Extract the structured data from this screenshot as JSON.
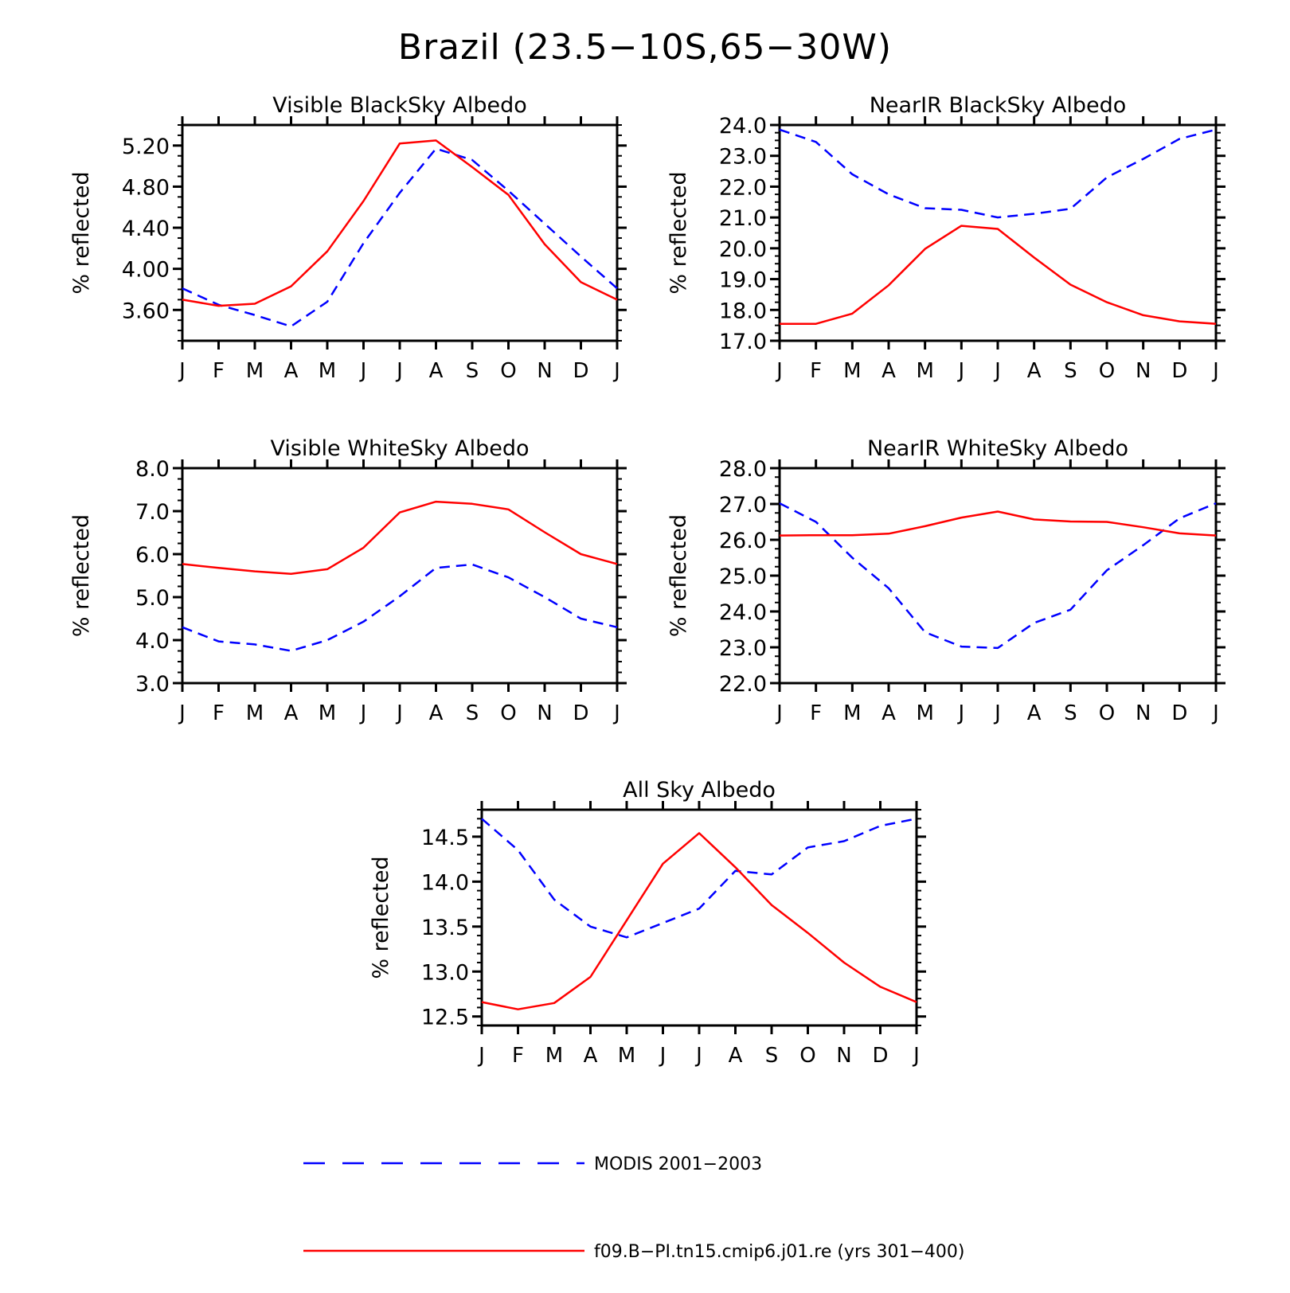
{
  "title": "Brazil (23.5−10S,65−30W)",
  "colors": {
    "modis": "#0000ff",
    "model": "#ff0000",
    "axis": "#000000"
  },
  "months": [
    "J",
    "F",
    "M",
    "A",
    "M",
    "J",
    "J",
    "A",
    "S",
    "O",
    "N",
    "D",
    "J"
  ],
  "ylabel": "% reflected",
  "legend": {
    "modis": "MODIS 2001−2003",
    "model": "f09.B−PI.tn15.cmip6.j01.re (yrs 301−400)"
  },
  "chart_data": [
    {
      "type": "line",
      "title": "Visible BlackSky Albedo",
      "ylabel": "% reflected",
      "ylim": [
        3.3,
        5.4
      ],
      "yticks": [
        "3.60",
        "4.00",
        "4.40",
        "4.80",
        "5.20"
      ],
      "ytick_values": [
        3.6,
        4.0,
        4.4,
        4.8,
        5.2
      ],
      "yminor": 0.1,
      "series": [
        {
          "name": "MODIS 2001−2003",
          "style": "dashed",
          "values": [
            3.81,
            3.65,
            3.55,
            3.44,
            3.68,
            4.25,
            4.74,
            5.17,
            5.06,
            4.76,
            4.44,
            4.12,
            3.81
          ]
        },
        {
          "name": "f09.B−PI.tn15.cmip6.j01.re (yrs 301−400)",
          "style": "solid",
          "values": [
            3.7,
            3.64,
            3.66,
            3.83,
            4.17,
            4.66,
            5.22,
            5.25,
            4.99,
            4.72,
            4.24,
            3.87,
            3.7
          ]
        }
      ]
    },
    {
      "type": "line",
      "title": "NearIR BlackSky Albedo",
      "ylabel": "% reflected",
      "ylim": [
        17.0,
        24.0
      ],
      "yticks": [
        "17.0",
        "18.0",
        "19.0",
        "20.0",
        "21.0",
        "22.0",
        "23.0",
        "24.0"
      ],
      "ytick_values": [
        17,
        18,
        19,
        20,
        21,
        22,
        23,
        24
      ],
      "yminor": 0.25,
      "series": [
        {
          "name": "MODIS 2001−2003",
          "style": "dashed",
          "values": [
            23.85,
            23.45,
            22.4,
            21.75,
            21.3,
            21.25,
            21.0,
            21.12,
            21.28,
            22.3,
            22.9,
            23.55,
            23.85
          ]
        },
        {
          "name": "f09.B−PI.tn15.cmip6.j01.re (yrs 301−400)",
          "style": "solid",
          "values": [
            17.55,
            17.55,
            17.88,
            18.8,
            19.98,
            20.73,
            20.63,
            19.7,
            18.82,
            18.25,
            17.83,
            17.63,
            17.55
          ]
        }
      ]
    },
    {
      "type": "line",
      "title": "Visible WhiteSky Albedo",
      "ylabel": "% reflected",
      "ylim": [
        3.0,
        8.0
      ],
      "yticks": [
        "3.0",
        "4.0",
        "5.0",
        "6.0",
        "7.0",
        "8.0"
      ],
      "ytick_values": [
        3,
        4,
        5,
        6,
        7,
        8
      ],
      "yminor": 0.25,
      "series": [
        {
          "name": "MODIS 2001−2003",
          "style": "dashed",
          "values": [
            4.3,
            3.97,
            3.9,
            3.75,
            4.0,
            4.43,
            5.02,
            5.68,
            5.76,
            5.46,
            5.0,
            4.5,
            4.3
          ]
        },
        {
          "name": "f09.B−PI.tn15.cmip6.j01.re (yrs 301−400)",
          "style": "solid",
          "values": [
            5.77,
            5.68,
            5.6,
            5.54,
            5.65,
            6.15,
            6.97,
            7.22,
            7.17,
            7.04,
            6.51,
            6.0,
            5.77
          ]
        }
      ]
    },
    {
      "type": "line",
      "title": "NearIR WhiteSky Albedo",
      "ylabel": "% reflected",
      "ylim": [
        22.0,
        28.0
      ],
      "yticks": [
        "22.0",
        "23.0",
        "24.0",
        "25.0",
        "26.0",
        "27.0",
        "28.0"
      ],
      "ytick_values": [
        22,
        23,
        24,
        25,
        26,
        27,
        28
      ],
      "yminor": 0.25,
      "series": [
        {
          "name": "MODIS 2001−2003",
          "style": "dashed",
          "values": [
            27.02,
            26.5,
            25.5,
            24.65,
            23.42,
            23.02,
            22.98,
            23.68,
            24.05,
            25.15,
            25.85,
            26.6,
            27.02
          ]
        },
        {
          "name": "f09.B−PI.tn15.cmip6.j01.re (yrs 301−400)",
          "style": "solid",
          "values": [
            26.12,
            26.13,
            26.13,
            26.17,
            26.38,
            26.62,
            26.79,
            26.57,
            26.51,
            26.5,
            26.35,
            26.18,
            26.12
          ]
        }
      ]
    },
    {
      "type": "line",
      "title": "All Sky Albedo",
      "ylabel": "% reflected",
      "ylim": [
        12.4,
        14.8
      ],
      "yticks": [
        "12.5",
        "13.0",
        "13.5",
        "14.0",
        "14.5"
      ],
      "ytick_values": [
        12.5,
        13.0,
        13.5,
        14.0,
        14.5
      ],
      "yminor": 0.1,
      "series": [
        {
          "name": "MODIS 2001−2003",
          "style": "dashed",
          "values": [
            14.7,
            14.35,
            13.8,
            13.5,
            13.38,
            13.54,
            13.7,
            14.12,
            14.08,
            14.38,
            14.45,
            14.62,
            14.7
          ]
        },
        {
          "name": "f09.B−PI.tn15.cmip6.j01.re (yrs 301−400)",
          "style": "solid",
          "values": [
            12.66,
            12.58,
            12.65,
            12.94,
            13.57,
            14.2,
            14.54,
            14.16,
            13.74,
            13.43,
            13.1,
            12.83,
            12.66
          ]
        }
      ]
    }
  ]
}
